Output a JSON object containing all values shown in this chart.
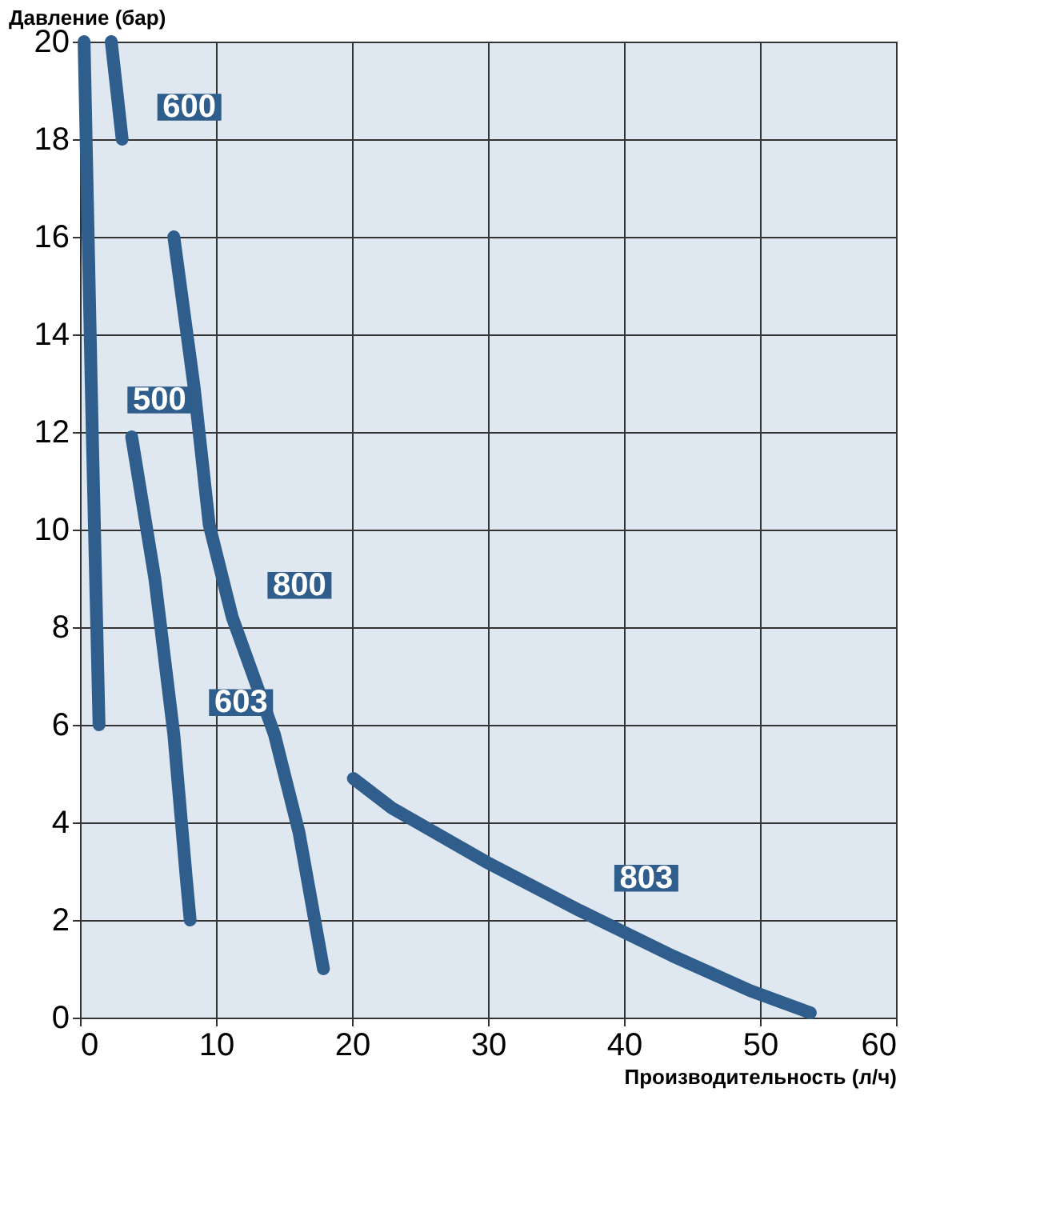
{
  "chart_data": {
    "type": "line",
    "xlabel": "Производительность (л/ч)",
    "ylabel": "Давление (бар)",
    "xlim": [
      0,
      60
    ],
    "xticks": [
      0,
      10,
      20,
      30,
      40,
      50,
      60
    ],
    "ylim": [
      0,
      20
    ],
    "yticks": [
      0,
      2,
      4,
      6,
      8,
      10,
      12,
      14,
      16,
      18,
      20
    ],
    "grid": true,
    "line_style": "solid",
    "series": [
      {
        "name": "600",
        "color": "#2f5d8c",
        "x": [
          2.3,
          3.1
        ],
        "values": [
          20,
          18
        ]
      },
      {
        "name": "500",
        "color": "#2f5d8c",
        "x": [
          0.3,
          0.9,
          1.4
        ],
        "values": [
          20,
          12,
          6
        ]
      },
      {
        "name": "800",
        "color": "#2f5d8c",
        "x": [
          6.9,
          8.4,
          9.5,
          11.2,
          14.3,
          16.1,
          17.9
        ],
        "values": [
          16,
          12.9,
          10.1,
          8.2,
          5.8,
          3.8,
          1.0
        ]
      },
      {
        "name": "603",
        "color": "#2f5d8c",
        "x": [
          3.8,
          5.5,
          6.9,
          7.8,
          8.1
        ],
        "values": [
          11.9,
          9.0,
          5.8,
          2.9,
          2.0
        ]
      },
      {
        "name": "803",
        "color": "#2f5d8c",
        "x": [
          20.1,
          22.9,
          29.8,
          36.7,
          43.6,
          49.3,
          53.7
        ],
        "values": [
          4.9,
          4.3,
          3.2,
          2.2,
          1.26,
          0.55,
          0.1
        ]
      }
    ]
  }
}
